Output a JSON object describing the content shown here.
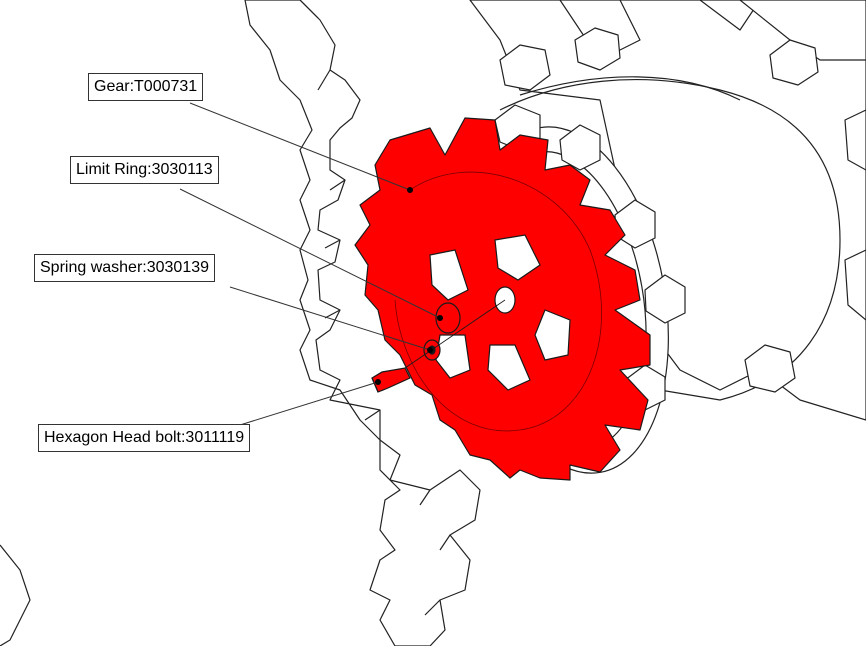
{
  "colors": {
    "highlight": "#ff0000",
    "line": "#333333",
    "background": "#ffffff"
  },
  "callouts": [
    {
      "label": "Gear:T000731"
    },
    {
      "label": "Limit Ring:3030113"
    },
    {
      "label": "Spring washer:3030139"
    },
    {
      "label": "Hexagon Head bolt:3011119"
    }
  ]
}
